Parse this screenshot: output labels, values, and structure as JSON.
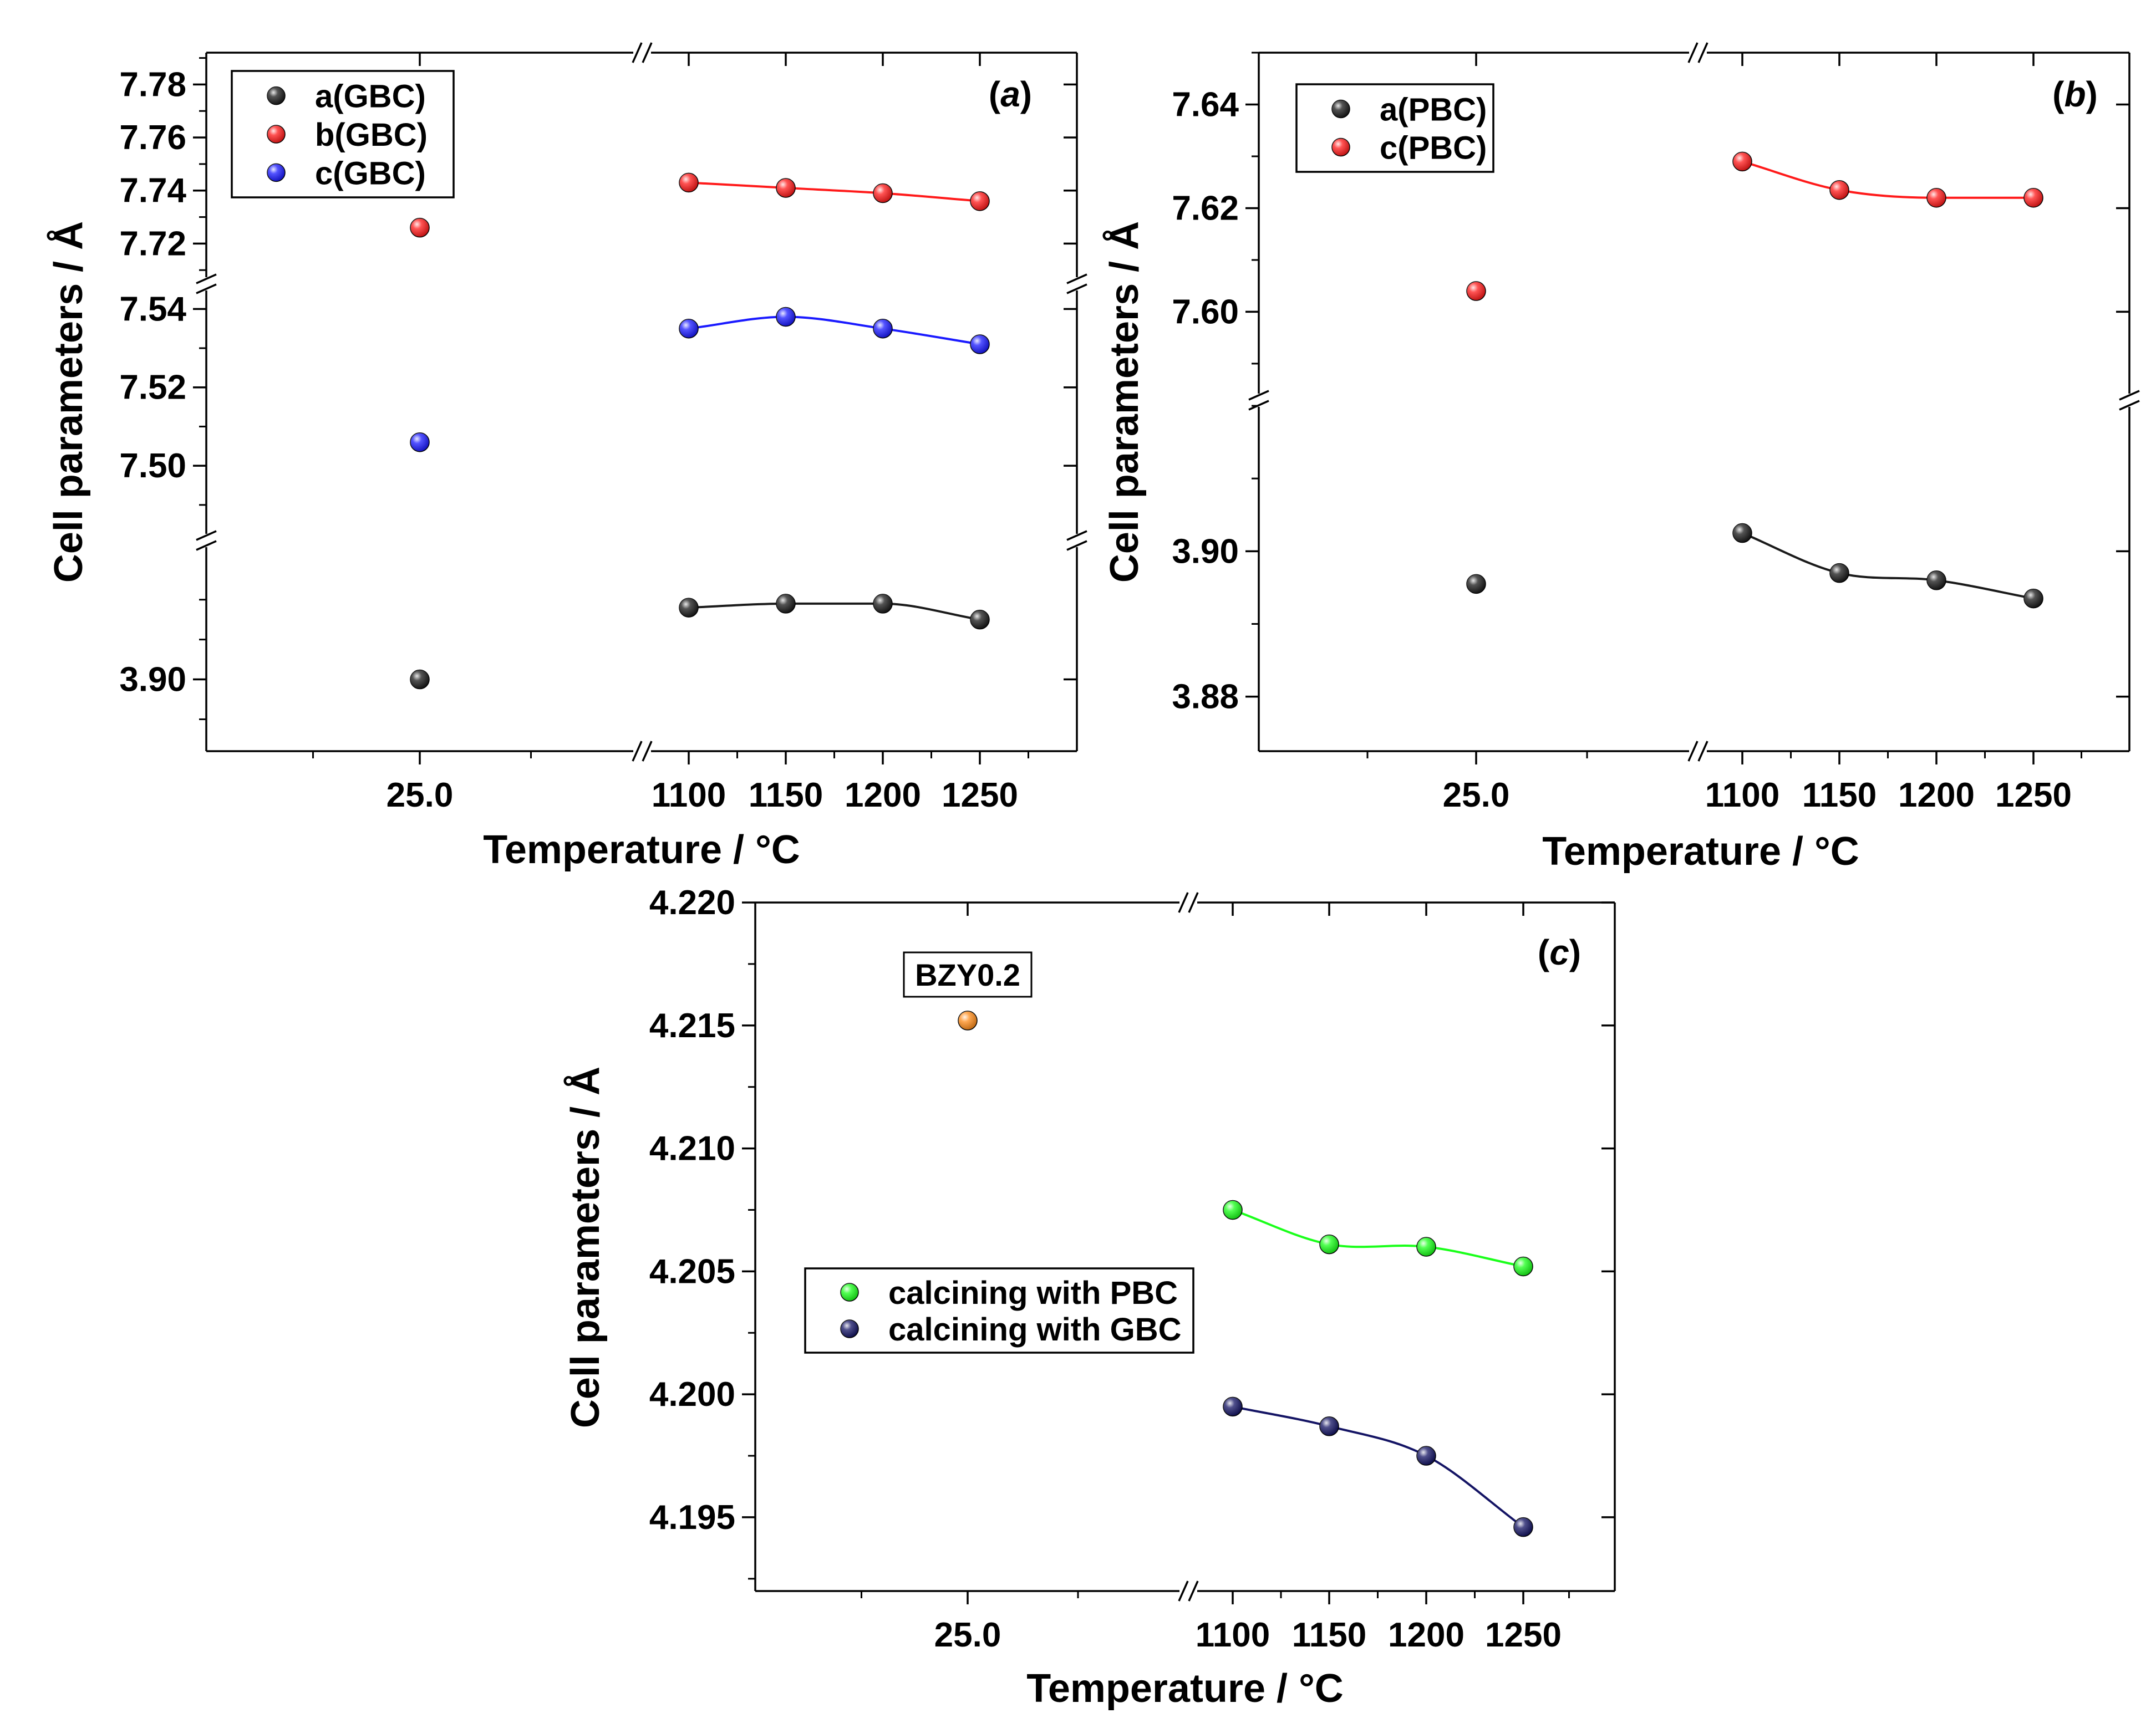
{
  "chart_data": [
    {
      "type": "scatter",
      "panel": "(a)",
      "panel_letter": "a",
      "xlabel": "Temperature / °C",
      "ylabel": "Cell parameters / Å",
      "x_tick_labels": [
        "25.0",
        "1100",
        "1150",
        "1200",
        "1250"
      ],
      "y_segments": [
        {
          "range": [
            3.882,
            3.929
          ],
          "ticks": [
            "3.90"
          ],
          "series": [
            "a(GBC)"
          ]
        },
        {
          "range": [
            7.487,
            7.545
          ],
          "ticks": [
            "7.50",
            "7.52",
            "7.54"
          ],
          "series": [
            "c(GBC)"
          ]
        },
        {
          "range": [
            7.709,
            7.792
          ],
          "ticks": [
            "7.72",
            "7.74",
            "7.76",
            "7.78"
          ],
          "series": [
            "b(GBC)"
          ]
        }
      ],
      "series": [
        {
          "name": "a(GBC)",
          "color": "#1a1a1a",
          "x": [
            "25.0",
            "1100",
            "1150",
            "1200",
            "1250"
          ],
          "y": [
            3.9,
            3.918,
            3.919,
            3.919,
            3.915
          ]
        },
        {
          "name": "b(GBC)",
          "color": "#ff1a1a",
          "x": [
            "25.0",
            "1100",
            "1150",
            "1200",
            "1250"
          ],
          "y": [
            7.726,
            7.743,
            7.741,
            7.739,
            7.736
          ]
        },
        {
          "name": "c(GBC)",
          "color": "#1a1aff",
          "x": [
            "25.0",
            "1100",
            "1150",
            "1200",
            "1250"
          ],
          "y": [
            7.506,
            7.535,
            7.538,
            7.535,
            7.531
          ]
        }
      ],
      "legend": "top-left"
    },
    {
      "type": "scatter",
      "panel": "(b)",
      "panel_letter": "b",
      "xlabel": "Temperature / °C",
      "ylabel": "Cell parameters / Å",
      "x_tick_labels": [
        "25.0",
        "1100",
        "1150",
        "1200",
        "1250"
      ],
      "y_segments": [
        {
          "range": [
            3.8725,
            3.92
          ],
          "ticks": [
            "3.88",
            "3.90"
          ],
          "series": [
            "a(PBC)"
          ]
        },
        {
          "range": [
            7.584,
            7.65
          ],
          "ticks": [
            "7.60",
            "7.62",
            "7.64"
          ],
          "series": [
            "c(PBC)"
          ]
        }
      ],
      "series": [
        {
          "name": "a(PBC)",
          "color": "#1a1a1a",
          "x": [
            "25.0",
            "1100",
            "1150",
            "1200",
            "1250"
          ],
          "y": [
            3.8955,
            3.9025,
            3.897,
            3.896,
            3.8935
          ]
        },
        {
          "name": "c(PBC)",
          "color": "#ff1a1a",
          "x": [
            "25.0",
            "1100",
            "1150",
            "1200",
            "1250"
          ],
          "y": [
            7.604,
            7.629,
            7.6235,
            7.622,
            7.622
          ]
        }
      ],
      "legend": "top-left"
    },
    {
      "type": "scatter",
      "panel": "(c)",
      "panel_letter": "c",
      "xlabel": "Temperature / °C",
      "ylabel": "Cell parameters / Å",
      "x_tick_labels": [
        "25.0",
        "1100",
        "1150",
        "1200",
        "1250"
      ],
      "y_segments": [
        {
          "range": [
            4.192,
            4.22
          ],
          "ticks": [
            "4.195",
            "4.200",
            "4.205",
            "4.210",
            "4.215",
            "4.220"
          ],
          "series": [
            "BZY0.2",
            "calcining with PBC",
            "calcining with GBC"
          ]
        }
      ],
      "series": [
        {
          "name": "BZY0.2",
          "color": "#ff8c1a",
          "x": [
            "25.0"
          ],
          "y": [
            4.2152
          ],
          "annotation": "BZY0.2"
        },
        {
          "name": "calcining with PBC",
          "color": "#1aff1a",
          "x": [
            "1100",
            "1150",
            "1200",
            "1250"
          ],
          "y": [
            4.2075,
            4.2061,
            4.206,
            4.2052
          ]
        },
        {
          "name": "calcining with GBC",
          "color": "#141464",
          "x": [
            "1100",
            "1150",
            "1200",
            "1250"
          ],
          "y": [
            4.1995,
            4.1987,
            4.1975,
            4.1946
          ]
        }
      ],
      "legend": "middle-left"
    }
  ]
}
